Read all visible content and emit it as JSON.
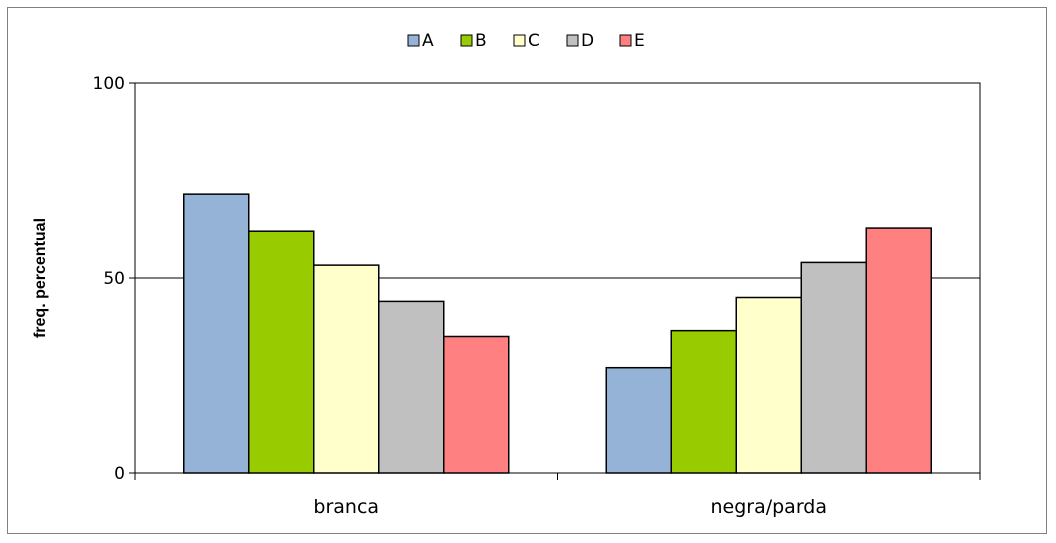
{
  "chart_data": {
    "type": "bar",
    "title": "",
    "xlabel": "",
    "ylabel": "freq. percentual",
    "ylim": [
      0,
      100
    ],
    "yticks": [
      "0",
      "50",
      "100"
    ],
    "grid": true,
    "legend_position": "top",
    "categories": [
      "branca",
      "negra/parda"
    ],
    "series": [
      {
        "name": "A",
        "color": "#95B3D7",
        "values": [
          71.5,
          27.0
        ]
      },
      {
        "name": "B",
        "color": "#99CC00",
        "values": [
          62.0,
          36.5
        ]
      },
      {
        "name": "C",
        "color": "#FFFFCC",
        "values": [
          53.3,
          45.0
        ]
      },
      {
        "name": "D",
        "color": "#C0C0C0",
        "values": [
          44.0,
          54.0
        ]
      },
      {
        "name": "E",
        "color": "#FF8080",
        "values": [
          35.0,
          62.8
        ]
      }
    ]
  }
}
